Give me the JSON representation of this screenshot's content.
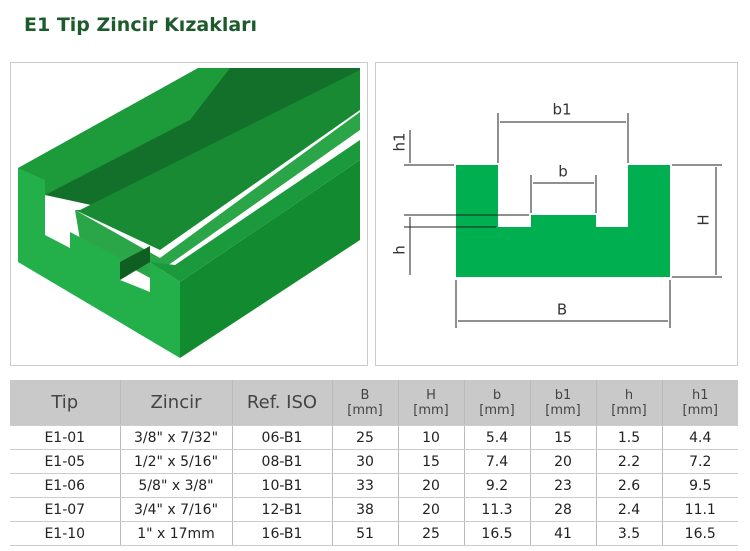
{
  "header": {
    "title": "E1 Tip Zincir Kızakları"
  },
  "diagram": {
    "labels": {
      "b1": "b1",
      "b": "b",
      "h1": "h1",
      "h": "h",
      "H": "H",
      "B": "B"
    }
  },
  "table": {
    "headers": [
      {
        "label": "Tip"
      },
      {
        "label": "Zincir"
      },
      {
        "label": "Ref. ISO"
      },
      {
        "label": "B",
        "unit": "[mm]"
      },
      {
        "label": "H",
        "unit": "[mm]"
      },
      {
        "label": "b",
        "unit": "[mm]"
      },
      {
        "label": "b1",
        "unit": "[mm]"
      },
      {
        "label": "h",
        "unit": "[mm]"
      },
      {
        "label": "h1",
        "unit": "[mm]"
      }
    ],
    "rows": [
      [
        "E1-01",
        "3/8\" x 7/32\"",
        "06-B1",
        "25",
        "10",
        "5.4",
        "15",
        "1.5",
        "4.4"
      ],
      [
        "E1-05",
        "1/2\" x 5/16\"",
        "08-B1",
        "30",
        "15",
        "7.4",
        "20",
        "2.2",
        "7.2"
      ],
      [
        "E1-06",
        "5/8\" x 3/8\"",
        "10-B1",
        "33",
        "20",
        "9.2",
        "23",
        "2.6",
        "9.5"
      ],
      [
        "E1-07",
        "3/4\" x 7/16\"",
        "12-B1",
        "38",
        "20",
        "11.3",
        "28",
        "2.4",
        "11.1"
      ],
      [
        "E1-10",
        "1\" x 17mm",
        "16-B1",
        "51",
        "25",
        "16.5",
        "41",
        "3.5",
        "16.5"
      ]
    ]
  }
}
